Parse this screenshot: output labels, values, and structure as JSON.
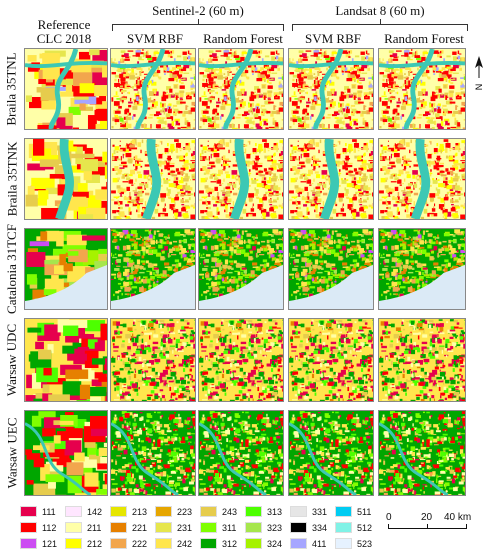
{
  "headers": {
    "reference": "Reference\nCLC 2018",
    "sentinel": "Sentinel-2 (60 m)",
    "landsat": "Landsat 8 (60 m)",
    "svm1": "SVM RBF",
    "rf1": "Random Forest",
    "svm2": "SVM RBF",
    "rf2": "Random Forest"
  },
  "rows": [
    "Braila 35TNL",
    "Braila 35TNK",
    "Catalonia 31TCF",
    "Warsaw UDC",
    "Warsaw UEC"
  ],
  "legend": [
    {
      "code": "111",
      "color": "#e6004d"
    },
    {
      "code": "112",
      "color": "#ff0000"
    },
    {
      "code": "121",
      "color": "#cc4df2"
    },
    {
      "code": "142",
      "color": "#ffe6ff"
    },
    {
      "code": "211",
      "color": "#ffffa8"
    },
    {
      "code": "212",
      "color": "#ffff00"
    },
    {
      "code": "213",
      "color": "#e6e600"
    },
    {
      "code": "221",
      "color": "#e68000"
    },
    {
      "code": "222",
      "color": "#f2a64d"
    },
    {
      "code": "223",
      "color": "#e6a600"
    },
    {
      "code": "231",
      "color": "#e6e64d"
    },
    {
      "code": "242",
      "color": "#ffe64d"
    },
    {
      "code": "243",
      "color": "#e6cc4d"
    },
    {
      "code": "311",
      "color": "#80ff00"
    },
    {
      "code": "312",
      "color": "#00a600"
    },
    {
      "code": "313",
      "color": "#4dff00"
    },
    {
      "code": "323",
      "color": "#a6e64d"
    },
    {
      "code": "324",
      "color": "#a6f200"
    },
    {
      "code": "331",
      "color": "#e6e6e6"
    },
    {
      "code": "334",
      "color": "#000000"
    },
    {
      "code": "411",
      "color": "#a6a6ff"
    },
    {
      "code": "511",
      "color": "#00ccf2"
    },
    {
      "code": "512",
      "color": "#80f2e6"
    },
    {
      "code": "523",
      "color": "#e6f2ff"
    }
  ],
  "scale": {
    "t0": "0",
    "t1": "20",
    "t2": "40 km"
  },
  "north": "N",
  "colors": {
    "water": "#3cc8b4",
    "sea": "#dbeaf6",
    "urban": "#e6004d"
  }
}
